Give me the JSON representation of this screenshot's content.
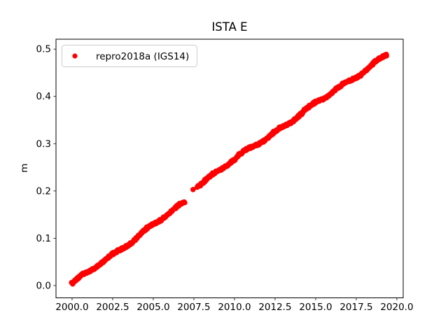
{
  "figure": {
    "title": "ISTA E",
    "ylabel": "m",
    "background_color": "#ffffff",
    "spine_color": "#000000"
  },
  "legend": {
    "label": "repro2018a (IGS14)",
    "marker_icon": "red-dot-marker",
    "marker_color": "#ff0000",
    "border_color": "#cccccc",
    "background_color": "#ffffff"
  },
  "axes": {
    "xlim": [
      1999.01,
      2020.39
    ],
    "ylim": [
      -0.026,
      0.521
    ],
    "xticks": [
      2000.0,
      2002.5,
      2005.0,
      2007.5,
      2010.0,
      2012.5,
      2015.0,
      2017.5,
      2020.0
    ],
    "xtick_labels": [
      "2000.0",
      "2002.5",
      "2005.0",
      "2007.5",
      "2010.0",
      "2012.5",
      "2015.0",
      "2017.5",
      "2020.0"
    ],
    "yticks": [
      0.0,
      0.1,
      0.2,
      0.3,
      0.4,
      0.5
    ],
    "ytick_labels": [
      "0.0",
      "0.1",
      "0.2",
      "0.3",
      "0.4",
      "0.5"
    ],
    "grid": false
  },
  "chart_data": {
    "type": "scatter",
    "title": "ISTA E",
    "xlabel": "",
    "ylabel": "m",
    "xlim": [
      1999.01,
      2020.39
    ],
    "ylim": [
      -0.026,
      0.521
    ],
    "legend_position": "upper left",
    "series": [
      {
        "name": "repro2018a (IGS14)",
        "color": "#ff0000",
        "marker": "dot",
        "description": "dense daily position time series forming a thick nearly-linear rising band, with a data gap between ~2006.93 and ~2007.7 and one isolated point inside the gap",
        "trend_segments": [
          {
            "x_start": 2000.0,
            "y_start": 0.003,
            "x_end": 2006.93,
            "y_end": 0.176
          },
          {
            "x_start": 2007.7,
            "y_start": 0.212,
            "x_end": 2019.38,
            "y_end": 0.488
          }
        ],
        "gap_x": [
          2006.93,
          2007.7
        ],
        "isolated_points": [
          [
            2007.45,
            0.203
          ]
        ],
        "points_sample": [
          [
            2000.0,
            0.003
          ],
          [
            2000.5,
            0.015
          ],
          [
            2001.0,
            0.028
          ],
          [
            2001.5,
            0.04
          ],
          [
            2002.0,
            0.053
          ],
          [
            2002.5,
            0.065
          ],
          [
            2003.0,
            0.078
          ],
          [
            2003.5,
            0.09
          ],
          [
            2004.0,
            0.103
          ],
          [
            2004.5,
            0.115
          ],
          [
            2005.0,
            0.128
          ],
          [
            2005.5,
            0.14
          ],
          [
            2006.0,
            0.153
          ],
          [
            2006.5,
            0.165
          ],
          [
            2006.93,
            0.176
          ],
          [
            2007.45,
            0.203
          ],
          [
            2007.7,
            0.212
          ],
          [
            2008.0,
            0.219
          ],
          [
            2008.5,
            0.231
          ],
          [
            2009.0,
            0.243
          ],
          [
            2009.5,
            0.254
          ],
          [
            2010.0,
            0.266
          ],
          [
            2010.5,
            0.278
          ],
          [
            2011.0,
            0.29
          ],
          [
            2011.5,
            0.302
          ],
          [
            2012.0,
            0.314
          ],
          [
            2012.5,
            0.325
          ],
          [
            2013.0,
            0.337
          ],
          [
            2013.5,
            0.349
          ],
          [
            2014.0,
            0.361
          ],
          [
            2014.5,
            0.373
          ],
          [
            2015.0,
            0.384
          ],
          [
            2015.5,
            0.396
          ],
          [
            2016.0,
            0.408
          ],
          [
            2016.5,
            0.42
          ],
          [
            2017.0,
            0.432
          ],
          [
            2017.5,
            0.443
          ],
          [
            2018.0,
            0.455
          ],
          [
            2018.5,
            0.467
          ],
          [
            2019.0,
            0.479
          ],
          [
            2019.38,
            0.488
          ]
        ]
      }
    ]
  }
}
